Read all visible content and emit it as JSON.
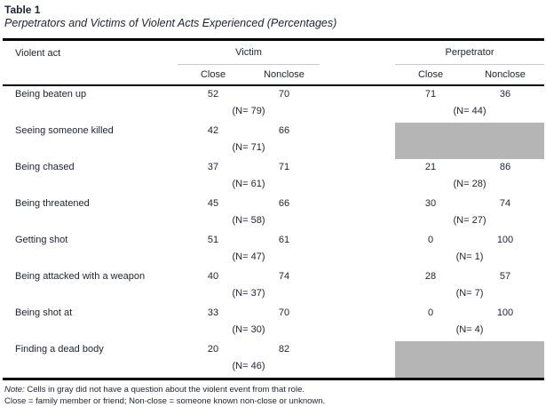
{
  "table": {
    "number": "Table 1",
    "title": "Perpetrators and Victims of Violent Acts Experienced (Percentages)",
    "columns": {
      "act_header": "Violent act",
      "group_victim": "Victim",
      "group_perpetrator": "Perpetrator"
    },
    "subheaders": [
      "Close",
      "Nonclose",
      "Close",
      "Nonclose"
    ],
    "rows": [
      {
        "act": "Being beaten up",
        "victim_close": 52,
        "victim_nonclose": 70,
        "victim_n": "(N= 79)",
        "perp_close": 71,
        "perp_nonclose": 36,
        "perp_n": "(N= 44)",
        "perp_gray": false
      },
      {
        "act": "Seeing someone killed",
        "victim_close": 42,
        "victim_nonclose": 66,
        "victim_n": "(N= 71)",
        "perp_gray": true
      },
      {
        "act": "Being chased",
        "victim_close": 37,
        "victim_nonclose": 71,
        "victim_n": "(N= 61)",
        "perp_close": 21,
        "perp_nonclose": 86,
        "perp_n": "(N= 28)",
        "perp_gray": false
      },
      {
        "act": "Being threatened",
        "victim_close": 45,
        "victim_nonclose": 66,
        "victim_n": "(N= 58)",
        "perp_close": 30,
        "perp_nonclose": 74,
        "perp_n": "(N= 27)",
        "perp_gray": false
      },
      {
        "act": "Getting shot",
        "victim_close": 51,
        "victim_nonclose": 61,
        "victim_n": "(N= 47)",
        "perp_close": 0,
        "perp_nonclose": 100,
        "perp_n": "(N= 1)",
        "perp_gray": false
      },
      {
        "act": "Being attacked with a weapon",
        "victim_close": 40,
        "victim_nonclose": 74,
        "victim_n": "(N= 37)",
        "perp_close": 28,
        "perp_nonclose": 57,
        "perp_n": "(N= 7)",
        "perp_gray": false
      },
      {
        "act": "Being shot at",
        "victim_close": 33,
        "victim_nonclose": 70,
        "victim_n": "(N= 30)",
        "perp_close": 0,
        "perp_nonclose": 100,
        "perp_n": "(N= 4)",
        "perp_gray": false
      },
      {
        "act": "Finding a dead body",
        "victim_close": 20,
        "victim_nonclose": 82,
        "victim_n": "(N= 46)",
        "perp_gray": true
      }
    ],
    "notes": {
      "label": "Note:",
      "line1_rest": " Cells in gray did not have a question about the violent event from that role.",
      "line2": "Close = family member or friend; Non-close = someone known non-close or unknown."
    },
    "colors": {
      "gray_cell": "#b5b5b5",
      "rule": "#000000",
      "text": "#1e2230"
    }
  }
}
